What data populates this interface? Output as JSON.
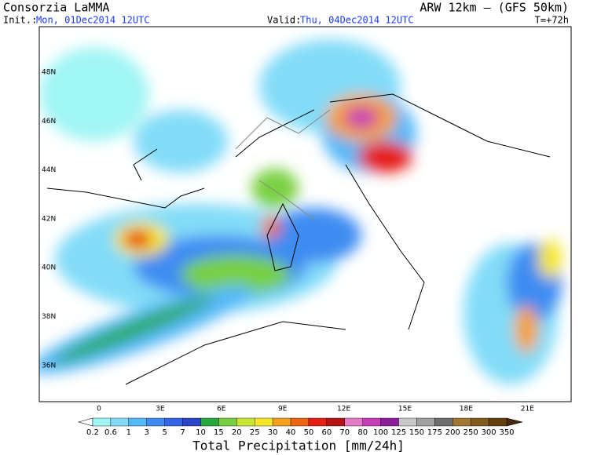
{
  "header": {
    "title": "Consorzia LaMMA",
    "model": "ARW 12km – (GFS 50km)",
    "init_label": "Init.:",
    "init_value": "Mon, 01Dec2014 12UTC",
    "valid_label": "Valid:",
    "valid_value": "Thu, 04Dec2014 12UTC",
    "lead": "T=+72h"
  },
  "map": {
    "lat_labels": [
      "48N",
      "46N",
      "44N",
      "42N",
      "40N",
      "38N",
      "36N"
    ],
    "lon_labels": [
      "0",
      "3E",
      "6E",
      "9E",
      "12E",
      "15E",
      "18E",
      "21E"
    ]
  },
  "colorbar": {
    "title": "Total Precipitation [mm/24h]",
    "levels": [
      0.2,
      0.6,
      1,
      3,
      5,
      7,
      10,
      15,
      20,
      25,
      30,
      40,
      50,
      60,
      70,
      80,
      100,
      125,
      150,
      175,
      200,
      250,
      300,
      350
    ],
    "colors": [
      "#ffffff",
      "#a0f5f5",
      "#82dcf8",
      "#55b8f8",
      "#3e8cf2",
      "#3464e6",
      "#2c44c8",
      "#28a83c",
      "#78d040",
      "#c8e632",
      "#f5e628",
      "#f5a01e",
      "#f06414",
      "#e61e14",
      "#b41414",
      "#e678c8",
      "#c83cb4",
      "#8c1e9b",
      "#c8c8c8",
      "#a0a0a0",
      "#6e6e6e",
      "#a07832",
      "#825a1e",
      "#64400f",
      "#46280a"
    ]
  }
}
